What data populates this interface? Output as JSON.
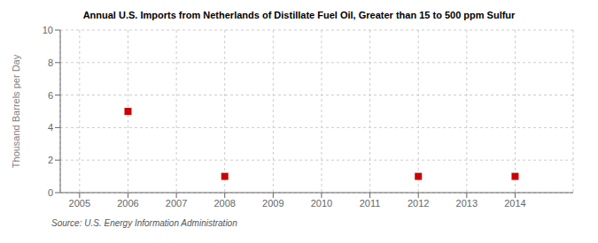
{
  "chart_data": {
    "type": "scatter",
    "title": "Annual U.S. Imports from Netherlands of Distillate Fuel Oil, Greater than 15 to 500 ppm Sulfur",
    "ylabel": "Thousand Barrels per Day",
    "annotations": [
      "Source: U.S. Energy Information Administration"
    ],
    "x": [
      2006,
      2008,
      2012,
      2014
    ],
    "values": [
      5.0,
      1.0,
      1.0,
      1.0
    ],
    "color": "#CC0000",
    "marker": "square",
    "xlim": [
      2004.6,
      2015.2
    ],
    "ylim": [
      0,
      10
    ],
    "xticks": [
      2005,
      2006,
      2007,
      2008,
      2009,
      2010,
      2011,
      2012,
      2013,
      2014
    ],
    "yticks": [
      0,
      2,
      4,
      6,
      8,
      10
    ],
    "grid": true
  }
}
